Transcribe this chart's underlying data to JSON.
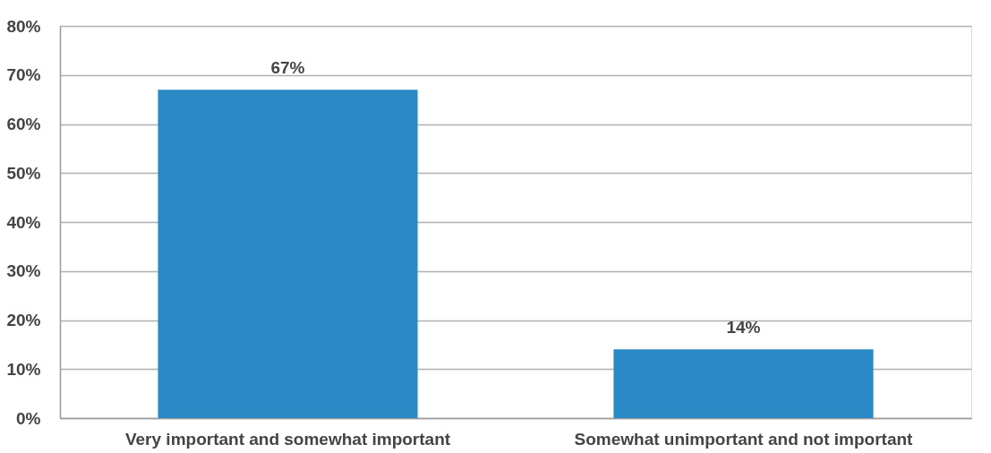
{
  "chart_data": {
    "type": "bar",
    "categories": [
      "Very important and somewhat important",
      "Somewhat unimportant and not important"
    ],
    "values": [
      67,
      14
    ],
    "value_labels": [
      "67%",
      "14%"
    ],
    "color": "#2a8ac6",
    "ylim": [
      0,
      80
    ],
    "yticks": [
      {
        "value": 0,
        "label": "0%"
      },
      {
        "value": 10,
        "label": "10%"
      },
      {
        "value": 20,
        "label": "20%"
      },
      {
        "value": 30,
        "label": "30%"
      },
      {
        "value": 40,
        "label": "40%"
      },
      {
        "value": 50,
        "label": "50%"
      },
      {
        "value": 60,
        "label": "60%"
      },
      {
        "value": 70,
        "label": "70%"
      },
      {
        "value": 80,
        "label": "80%"
      }
    ],
    "grid": "y"
  }
}
